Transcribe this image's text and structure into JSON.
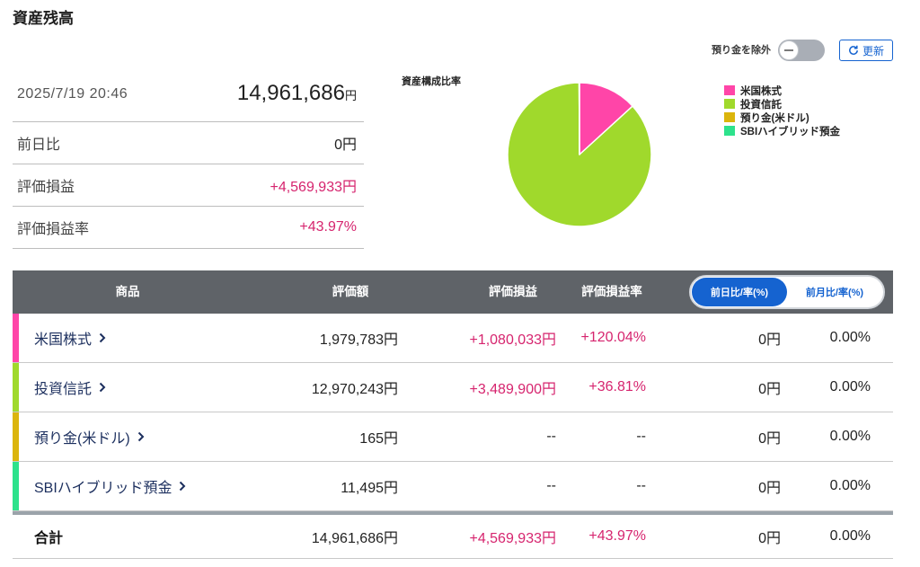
{
  "page": {
    "title": "資産残高"
  },
  "controls": {
    "exclude_deposit": {
      "label": "預り金を除外",
      "on": false
    },
    "refresh": {
      "label": "更新",
      "icon": "refresh-icon"
    }
  },
  "summary": {
    "datetime": "2025/7/19 20:46",
    "total": {
      "value": "14,961,686",
      "unit": "円"
    },
    "rows": [
      {
        "label": "前日比",
        "value": "0円"
      },
      {
        "label": "評価損益",
        "value": "+4,569,933円"
      },
      {
        "label": "評価損益率",
        "value": "+43.97%"
      }
    ]
  },
  "chart_data": {
    "type": "pie",
    "title": "資産構成比率",
    "categories": [
      "米国株式",
      "投資信託",
      "預り金(米ドル)",
      "SBIハイブリッド預金"
    ],
    "values": [
      1979783,
      12970243,
      165,
      11495
    ],
    "colors": [
      "#ff45a8",
      "#a0d92c",
      "#dbb50c",
      "#2de28c"
    ],
    "legend": "right"
  },
  "table": {
    "headers": {
      "product": "商品",
      "value": "評価額",
      "gain": "評価損益",
      "gain_rate": "評価損益率"
    },
    "period_tabs": [
      {
        "label": "前日比/率(%)",
        "active": true
      },
      {
        "label": "前月比/率(%)",
        "active": false
      }
    ],
    "row_icon": "chevron-right-icon",
    "rows": [
      {
        "name": "米国株式",
        "value": "1,979,783円",
        "gain": "+1,080,033円",
        "gain_rate": "+120.04%",
        "change": "0円",
        "change_rate": "0.00%"
      },
      {
        "name": "投資信託",
        "value": "12,970,243円",
        "gain": "+3,489,900円",
        "gain_rate": "+36.81%",
        "change": "0円",
        "change_rate": "0.00%"
      },
      {
        "name": "預り金(米ドル)",
        "value": "165円",
        "gain": "--",
        "gain_rate": "--",
        "change": "0円",
        "change_rate": "0.00%"
      },
      {
        "name": "SBIハイブリッド預金",
        "value": "11,495円",
        "gain": "--",
        "gain_rate": "--",
        "change": "0円",
        "change_rate": "0.00%"
      }
    ],
    "total": {
      "name": "合計",
      "value": "14,961,686円",
      "gain": "+4,569,933円",
      "gain_rate": "+43.97%",
      "change": "0円",
      "change_rate": "0.00%"
    }
  },
  "colors": {
    "positive": "#d6246e",
    "link": "#1c2f5e",
    "accent": "#1563d0",
    "header_bg": "#5f6368"
  }
}
